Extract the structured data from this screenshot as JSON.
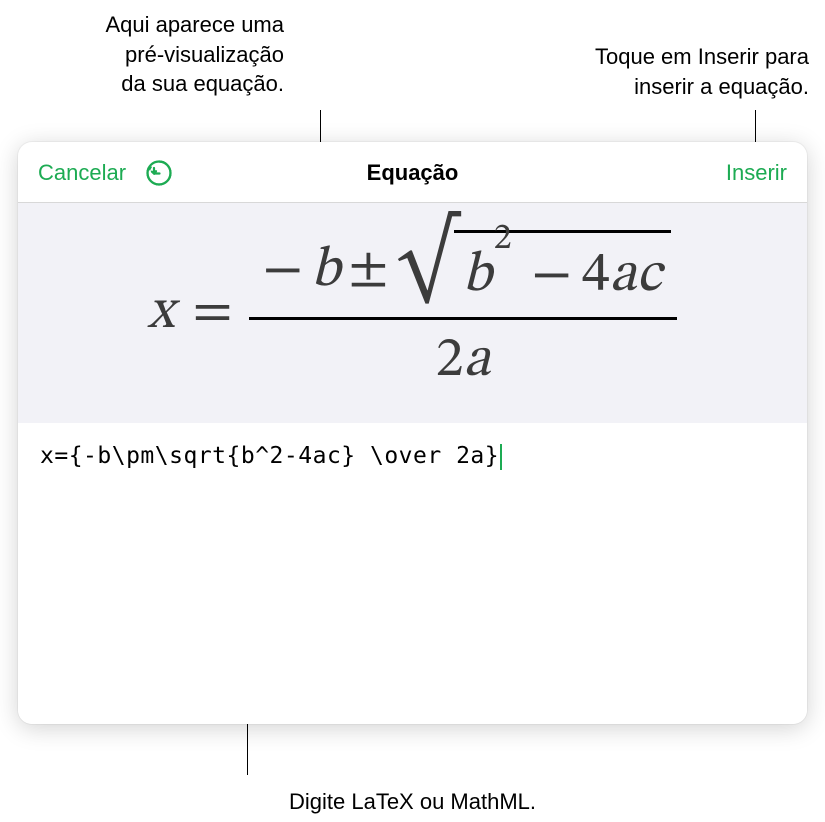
{
  "callouts": {
    "preview": "Aqui aparece uma\npré-visualização\nda sua equação.",
    "insert": "Toque em Inserir para\ninserir a equação.",
    "input": "Digite LaTeX ou MathML."
  },
  "dialog": {
    "cancel_label": "Cancelar",
    "title": "Equação",
    "insert_label": "Inserir",
    "undo_icon_color": "#1dab53"
  },
  "equation": {
    "latex_source": "x={-b\\pm\\sqrt{b^2-4ac} \\over 2a}",
    "preview": {
      "lhs": "x",
      "equals": "=",
      "numerator_minus": "−",
      "numerator_b": "b",
      "numerator_pm": "±",
      "sqrt_b": "b",
      "sqrt_exp": "2",
      "sqrt_minus": "−",
      "sqrt_four": "4",
      "sqrt_a": "a",
      "sqrt_c": "c",
      "denom_two": "2",
      "denom_a": "a"
    }
  },
  "colors": {
    "accent": "#1dab53",
    "text": "#000000",
    "preview_bg": "#f2f2f7",
    "equation_text": "#3c3c3c"
  }
}
